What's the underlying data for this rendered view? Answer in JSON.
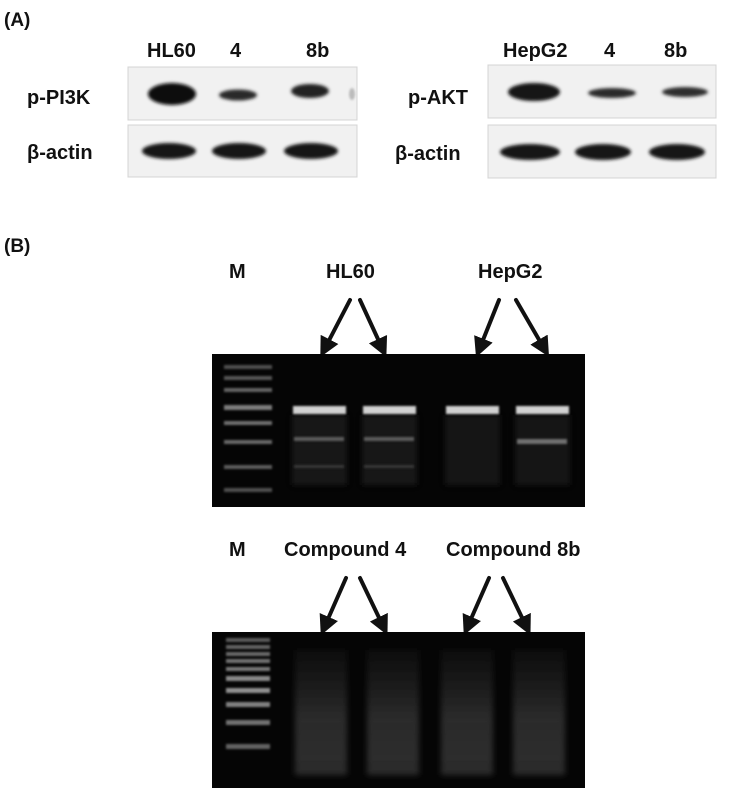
{
  "panel_a": {
    "label": "(A)",
    "blot_left": {
      "lanes": [
        "HL60",
        "4",
        "8b"
      ],
      "rows": [
        "p-PI3K",
        "β-actin"
      ]
    },
    "blot_right": {
      "lanes": [
        "HepG2",
        "4",
        "8b"
      ],
      "rows": [
        "p-AKT",
        "β-actin"
      ]
    }
  },
  "panel_b": {
    "label": "(B)",
    "gel_top": {
      "marker": "M",
      "groups": [
        "HL60",
        "HepG2"
      ]
    },
    "gel_bottom": {
      "marker": "M",
      "groups": [
        "Compound 4",
        "Compound 8b"
      ]
    }
  }
}
